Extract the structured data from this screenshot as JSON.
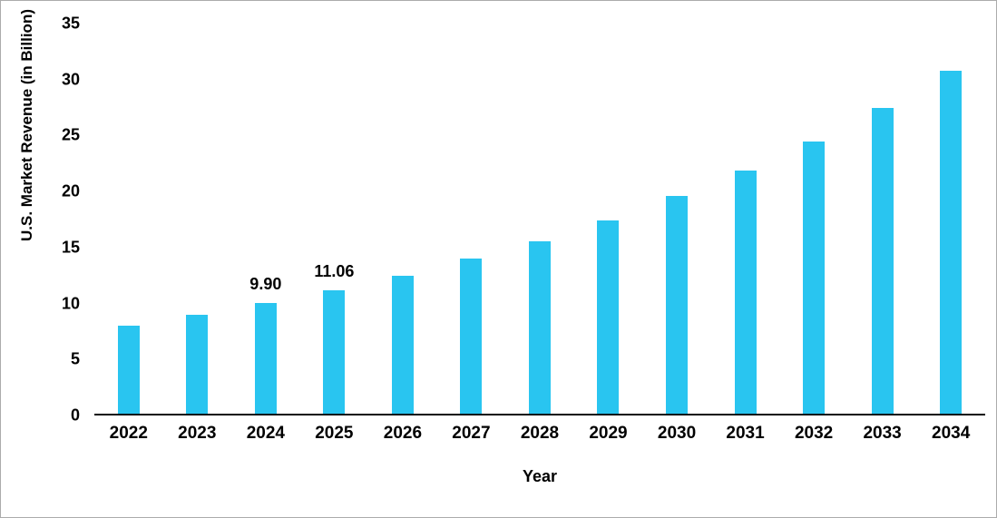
{
  "chart_data": {
    "type": "bar",
    "categories": [
      "2022",
      "2023",
      "2024",
      "2025",
      "2026",
      "2027",
      "2028",
      "2029",
      "2030",
      "2031",
      "2032",
      "2033",
      "2034"
    ],
    "values": [
      7.9,
      8.9,
      9.9,
      11.06,
      12.4,
      13.9,
      15.5,
      17.3,
      19.5,
      21.8,
      24.4,
      27.4,
      30.8
    ],
    "data_labels": [
      null,
      null,
      "9.90",
      "11.06",
      null,
      null,
      null,
      null,
      null,
      null,
      null,
      null,
      null
    ],
    "title": "",
    "xlabel": "Year",
    "ylabel": "U.S. Market Revenue (in Billion)",
    "ylim": [
      0,
      35
    ],
    "yticks": [
      0,
      5,
      10,
      15,
      20,
      25,
      30,
      35
    ],
    "grid": false,
    "legend": false,
    "bar_color": "#29c5f0",
    "axis_color": "#0d0d0d",
    "text_color": "#000000"
  }
}
